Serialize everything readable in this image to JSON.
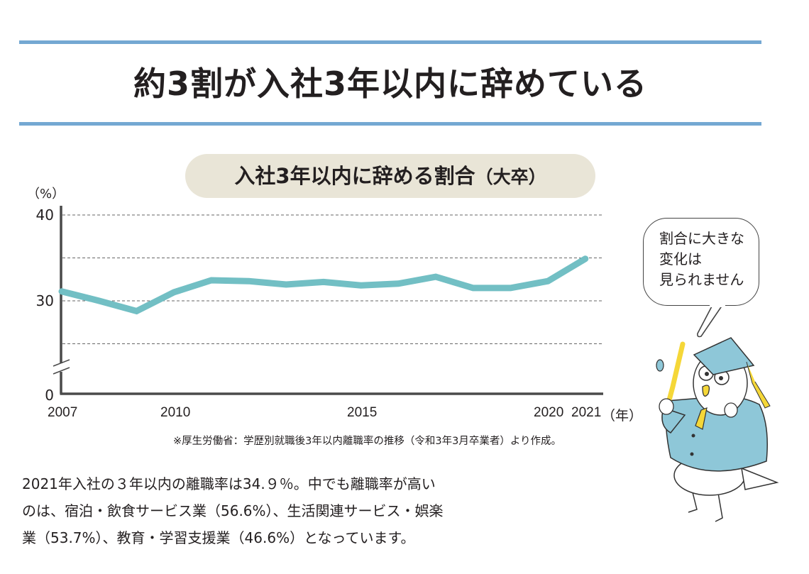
{
  "header": {
    "title": "約3割が入社3年以内に辞めている",
    "rule_color": "#74a8d2"
  },
  "chart_title": {
    "main": "入社3年以内に辞める割合",
    "sub": "（大卒）",
    "pill_color": "#e9e5d7"
  },
  "axes": {
    "y_unit": "（%）",
    "y_ticks": [
      "40",
      "30",
      "0"
    ],
    "x_ticks": [
      "2007",
      "2010",
      "2015",
      "2020",
      "2021"
    ],
    "x_unit": "（年）"
  },
  "chart_data": {
    "type": "line",
    "title": "入社3年以内に辞める割合（大卒）",
    "xlabel": "（年）",
    "ylabel": "（%）",
    "x": [
      2007,
      2008,
      2009,
      2010,
      2011,
      2012,
      2013,
      2014,
      2015,
      2016,
      2017,
      2018,
      2019,
      2020,
      2021
    ],
    "series": [
      {
        "name": "3年以内離職率（大卒）",
        "color": "#72bfc4",
        "values": [
          31.1,
          30.0,
          28.8,
          31.0,
          32.4,
          32.3,
          31.9,
          32.2,
          31.8,
          32.0,
          32.8,
          31.5,
          31.5,
          32.3,
          34.9
        ]
      }
    ],
    "ylim": [
      0,
      40
    ],
    "y_axis_break": true,
    "y_gridlines": [
      25,
      30,
      35,
      40
    ],
    "grid": "dashed horizontal",
    "x_tick_labels": [
      "2007",
      "2010",
      "2015",
      "2020",
      "2021"
    ],
    "legend": "none"
  },
  "source_note": "※厚生労働省：学歴別就職後3年以内離職率の推移（令和3年3月卒業者）より作成。",
  "body_text": [
    "2021年入社の３年以内の離職率は34.９％。中でも離職率が高い",
    "のは、宿泊・飲食サービス業（56.6%）、生活関連サービス・娯楽",
    "業（53.7%）、教育・学習支援業（46.6%）となっています。"
  ],
  "speech_bubble": {
    "lines": [
      "割合に大きな",
      "変化は",
      "見られません"
    ]
  },
  "illustration": {
    "label": "graduate-bird-character"
  }
}
